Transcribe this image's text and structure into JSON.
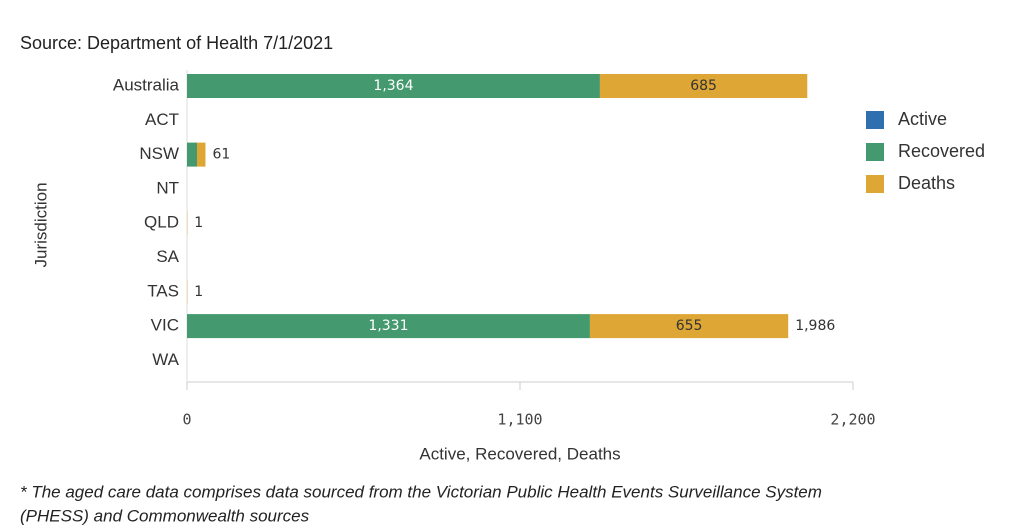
{
  "chart_data": {
    "type": "stacked-bar-horizontal",
    "title": "Source: Department of Health 7/1/2021",
    "categories": [
      "Australia",
      "ACT",
      "NSW",
      "NT",
      "QLD",
      "SA",
      "TAS",
      "VIC",
      "WA"
    ],
    "series": [
      {
        "name": "Active",
        "color": "#2f6fb0",
        "values": [
          0,
          0,
          0,
          0,
          0,
          0,
          0,
          0,
          0
        ]
      },
      {
        "name": "Recovered",
        "color": "#44996e",
        "values": [
          1364,
          0,
          33,
          0,
          0,
          0,
          0,
          1331,
          0
        ],
        "value_labels": [
          "1,364",
          null,
          null,
          null,
          null,
          null,
          null,
          "1,331",
          null
        ]
      },
      {
        "name": "Deaths",
        "color": "#dea634",
        "values": [
          685,
          0,
          28,
          0,
          1,
          0,
          1,
          655,
          0
        ],
        "value_labels": [
          "685",
          null,
          null,
          null,
          null,
          null,
          null,
          "655",
          null
        ]
      }
    ],
    "totals": [
      null,
      null,
      61,
      null,
      1,
      null,
      1,
      1986,
      null
    ],
    "total_labels": [
      null,
      null,
      "61",
      null,
      "1",
      null,
      "1",
      "1,986",
      null
    ],
    "xlim": [
      0,
      2200
    ],
    "xticks": [
      0,
      {
        "value": 1100,
        "label": "1,100"
      },
      {
        "value": 2200,
        "label": "2,200"
      }
    ],
    "xlabel": "Active, Recovered, Deaths",
    "ylabel": "Jurisdiction",
    "legend": "right",
    "footnote": [
      "* The aged care data comprises data sourced from the Victorian Public Health Events Surveillance System",
      "(PHESS) and Commonwealth sources"
    ]
  }
}
